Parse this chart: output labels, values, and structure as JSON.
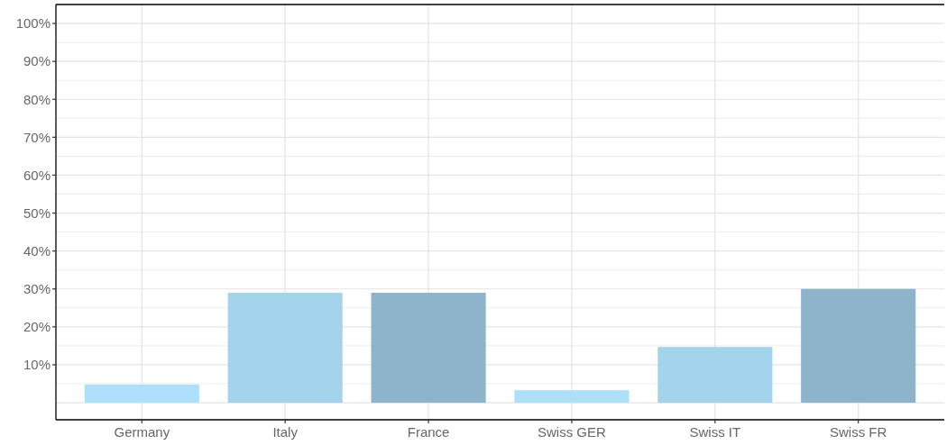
{
  "chart_data": {
    "type": "bar",
    "categories": [
      "Germany",
      "Italy",
      "France",
      "Swiss GER",
      "Swiss IT",
      "Swiss FR"
    ],
    "values": [
      4.8,
      29,
      29,
      3.3,
      14.7,
      30
    ],
    "colors": [
      "#aee0fc",
      "#a4d3ec",
      "#8db4cb",
      "#aee0fc",
      "#a4d3ec",
      "#8db4cb"
    ],
    "ylim": [
      -4.5,
      105
    ],
    "yticks": [
      {
        "value": 0,
        "label": null
      },
      {
        "value": 10,
        "label": "10%"
      },
      {
        "value": 20,
        "label": "20%"
      },
      {
        "value": 30,
        "label": "30%"
      },
      {
        "value": 40,
        "label": "40%"
      },
      {
        "value": 50,
        "label": "50%"
      },
      {
        "value": 60,
        "label": "60%"
      },
      {
        "value": 70,
        "label": "70%"
      },
      {
        "value": 80,
        "label": "80%"
      },
      {
        "value": 90,
        "label": "90%"
      },
      {
        "value": 100,
        "label": "100%"
      }
    ],
    "grid": true
  }
}
